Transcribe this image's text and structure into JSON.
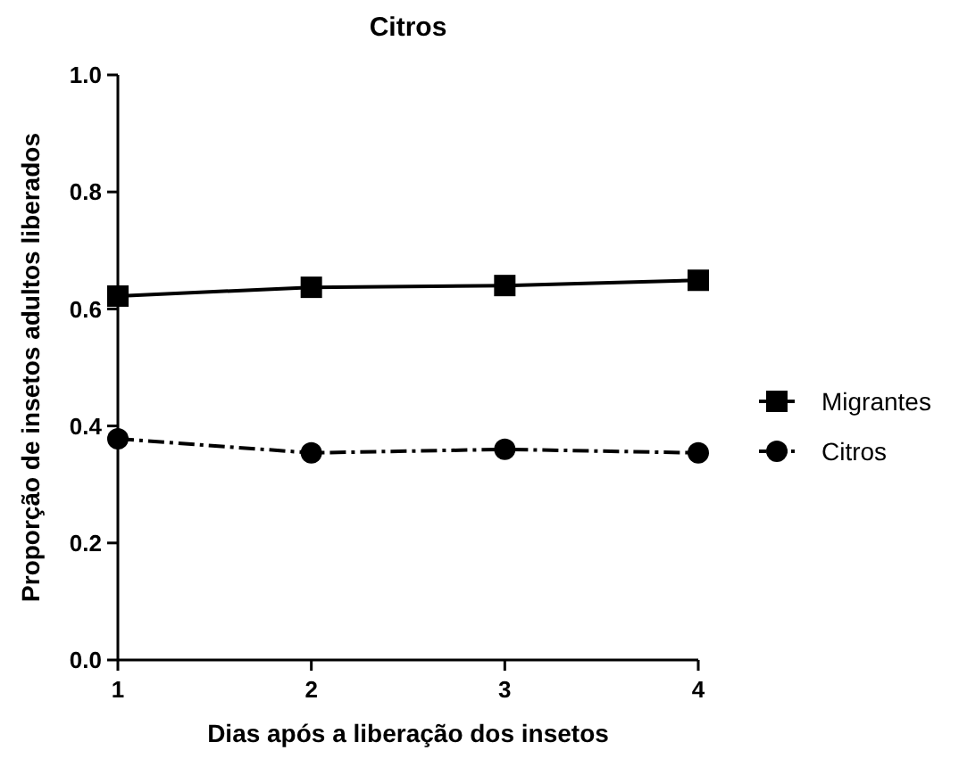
{
  "chart_data": {
    "type": "line",
    "title": "Citros",
    "xlabel": "Dias após a liberação dos insetos",
    "ylabel": "Proporção de insetos adultos liberados",
    "x": [
      1,
      2,
      3,
      4
    ],
    "xlim": [
      1,
      4
    ],
    "xticks": [
      1,
      2,
      3,
      4
    ],
    "ylim": [
      0,
      1
    ],
    "yticks": [
      {
        "value": 0,
        "label": "0.0"
      },
      0.2,
      0.4,
      0.6,
      0.8,
      {
        "value": 1,
        "label": "1.0"
      }
    ],
    "grid": false,
    "legend": "right",
    "series": [
      {
        "name": "Migrantes",
        "color": "#000000",
        "values": [
          0.622,
          0.637,
          0.64,
          0.649
        ],
        "marker": "square",
        "line_style": "solid"
      },
      {
        "name": "Citros",
        "color": "#000000",
        "values": [
          0.378,
          0.354,
          0.36,
          0.354
        ],
        "marker": "circle",
        "line_style": "dashed"
      }
    ]
  }
}
